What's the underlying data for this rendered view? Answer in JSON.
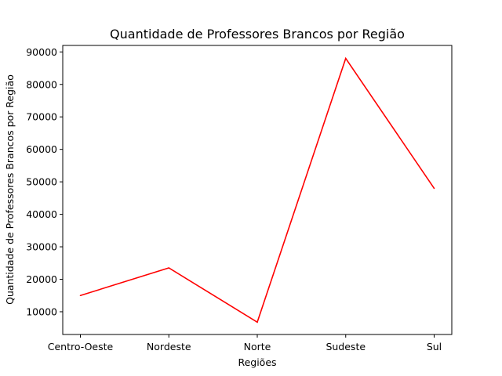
{
  "chart_data": {
    "type": "line",
    "title": "Quantidade de Professores Brancos por Região",
    "xlabel": "Regiões",
    "ylabel": "Quantidade de Professores Brancos por Região",
    "categories": [
      "Centro-Oeste",
      "Nordeste",
      "Norte",
      "Sudeste",
      "Sul"
    ],
    "series": [
      {
        "values": [
          15000,
          23500,
          6800,
          88000,
          48000
        ],
        "color": "#ff0000"
      }
    ],
    "yticks": [
      10000,
      20000,
      30000,
      40000,
      50000,
      60000,
      70000,
      80000,
      90000
    ],
    "ylim": [
      3000,
      92000
    ],
    "grid": false,
    "legend": "none"
  }
}
